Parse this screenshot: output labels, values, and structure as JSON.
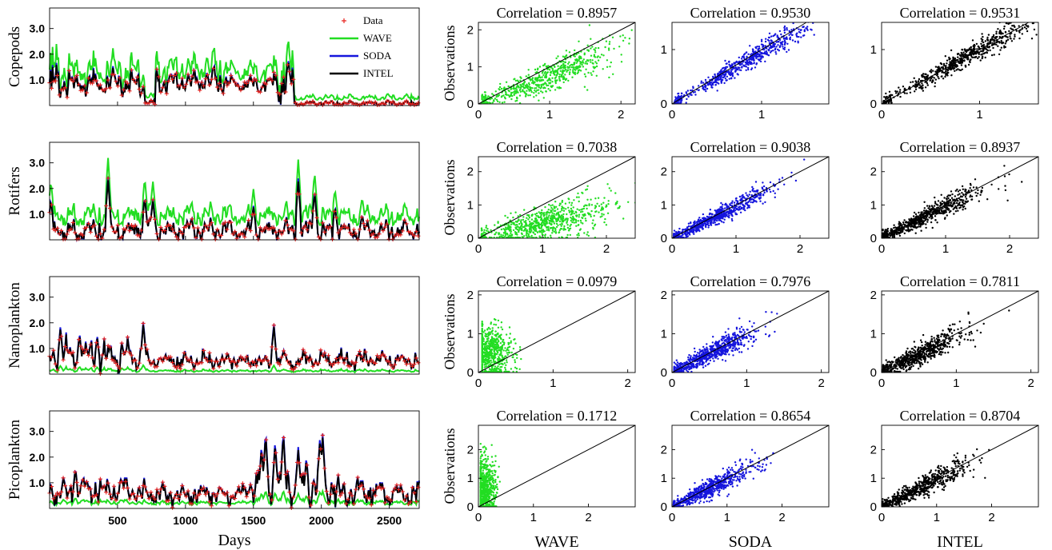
{
  "colors": {
    "data": "#e8231f",
    "wave": "#22dd22",
    "soda": "#1515dd",
    "intel": "#000000",
    "axis": "#000000",
    "background": "#ffffff"
  },
  "chart_data": [
    {
      "type": "line",
      "panel": "timeseries",
      "ylabel": "Copepods",
      "xlabel": "",
      "xlim": [
        0,
        2720
      ],
      "ylim": [
        0,
        3.8
      ],
      "xticks": [
        500,
        1000,
        1500,
        2000,
        2500
      ],
      "yticks": [
        1.0,
        2.0,
        3.0
      ],
      "yticklabels": [
        "1.0",
        "2.0",
        "3.0"
      ],
      "legend": [
        "Data",
        "WAVE",
        "SODA",
        "INTEL"
      ],
      "legend_position": "top-right",
      "segments": [
        {
          "start": 0,
          "end": 120,
          "base": 0.8,
          "amp": 0.9
        },
        {
          "start": 120,
          "end": 700,
          "base": 0.85,
          "amp": 0.5
        },
        {
          "start": 700,
          "end": 780,
          "base": 0.1,
          "amp": 0.1
        },
        {
          "start": 780,
          "end": 1300,
          "base": 0.95,
          "amp": 0.5
        },
        {
          "start": 1300,
          "end": 1650,
          "base": 0.85,
          "amp": 0.3
        },
        {
          "start": 1650,
          "end": 1800,
          "base": 0.9,
          "amp": 0.8
        },
        {
          "start": 1800,
          "end": 2720,
          "base": 0.08,
          "amp": 0.1
        }
      ],
      "wave_scale": 1.35,
      "wave_offset": 0.2,
      "spikes": []
    },
    {
      "type": "line",
      "panel": "timeseries",
      "ylabel": "Rotifers",
      "xlabel": "",
      "xlim": [
        0,
        2720
      ],
      "ylim": [
        0,
        3.8
      ],
      "xticks": [
        500,
        1000,
        1500,
        2000,
        2500
      ],
      "yticks": [
        1.0,
        2.0,
        3.0
      ],
      "yticklabels": [
        "1.0",
        "2.0",
        "3.0"
      ],
      "segments": [
        {
          "start": 0,
          "end": 2720,
          "base": 0.35,
          "amp": 0.4
        }
      ],
      "wave_scale": 1.1,
      "wave_offset": 0.55,
      "spikes": [
        [
          10,
          1.6
        ],
        [
          430,
          2.45
        ],
        [
          700,
          1.7
        ],
        [
          760,
          1.6
        ],
        [
          1500,
          1.3
        ],
        [
          1830,
          2.35
        ],
        [
          1950,
          1.9
        ],
        [
          2100,
          1.3
        ],
        [
          2300,
          1.0
        ]
      ]
    },
    {
      "type": "line",
      "panel": "timeseries",
      "ylabel": "Nanoplankton",
      "xlabel": "",
      "xlim": [
        0,
        2720
      ],
      "ylim": [
        0,
        3.8
      ],
      "xticks": [
        500,
        1000,
        1500,
        2000,
        2500
      ],
      "yticks": [
        1.0,
        2.0,
        3.0
      ],
      "yticklabels": [
        "1.0",
        "2.0",
        "3.0"
      ],
      "segments": [
        {
          "start": 0,
          "end": 700,
          "base": 0.7,
          "amp": 0.6
        },
        {
          "start": 700,
          "end": 1700,
          "base": 0.5,
          "amp": 0.3
        },
        {
          "start": 1700,
          "end": 2720,
          "base": 0.55,
          "amp": 0.35
        }
      ],
      "wave_scale": 0.15,
      "wave_offset": 0.05,
      "spikes": [
        [
          80,
          1.85
        ],
        [
          220,
          1.6
        ],
        [
          350,
          1.5
        ],
        [
          690,
          2.05
        ],
        [
          1650,
          1.95
        ]
      ]
    },
    {
      "type": "line",
      "panel": "timeseries",
      "ylabel": "Picoplankton",
      "xlabel": "Days",
      "xlim": [
        0,
        2720
      ],
      "ylim": [
        0,
        3.8
      ],
      "xticks": [
        500,
        1000,
        1500,
        2000,
        2500
      ],
      "yticks": [
        1.0,
        2.0,
        3.0
      ],
      "yticklabels": [
        "1.0",
        "2.0",
        "3.0"
      ],
      "segments": [
        {
          "start": 0,
          "end": 700,
          "base": 0.7,
          "amp": 0.5
        },
        {
          "start": 700,
          "end": 1450,
          "base": 0.55,
          "amp": 0.4
        },
        {
          "start": 1450,
          "end": 2100,
          "base": 0.9,
          "amp": 0.8
        },
        {
          "start": 2100,
          "end": 2720,
          "base": 0.6,
          "amp": 0.5
        }
      ],
      "wave_scale": 0.2,
      "wave_offset": 0.1,
      "spikes": [
        [
          190,
          1.6
        ],
        [
          1560,
          2.45
        ],
        [
          1590,
          3.0
        ],
        [
          1660,
          2.6
        ],
        [
          1720,
          3.0
        ],
        [
          1830,
          2.35
        ],
        [
          1890,
          2.0
        ],
        [
          1990,
          2.8
        ],
        [
          2010,
          2.9
        ]
      ]
    },
    {
      "type": "scatter",
      "panel": "wave-copepods",
      "title": "Correlation = 0.8957",
      "ylabel": "Observations",
      "xlabel": "",
      "xlim": [
        0,
        2.2
      ],
      "ylim": [
        0,
        2.2
      ],
      "xticks": [
        0,
        1,
        2
      ],
      "yticks": [
        0,
        1,
        2
      ],
      "n_points": 650,
      "x_center": 1.0,
      "x_spread": 0.45,
      "y_slope": 0.75,
      "y_noise": 0.25,
      "x_min": 0.05,
      "cluster_at_zero": 0.08,
      "color_key": "wave"
    },
    {
      "type": "scatter",
      "panel": "soda-copepods",
      "title": "Correlation = 0.9530",
      "ylabel": "",
      "xlabel": "",
      "xlim": [
        0,
        1.75
      ],
      "ylim": [
        0,
        1.5
      ],
      "xticks": [
        0,
        1
      ],
      "yticks": [
        0,
        1
      ],
      "n_points": 650,
      "x_center": 0.85,
      "x_spread": 0.38,
      "y_slope": 0.95,
      "y_noise": 0.12,
      "x_min": 0.03,
      "cluster_at_zero": 0.08,
      "color_key": "soda"
    },
    {
      "type": "scatter",
      "panel": "intel-copepods",
      "title": "Correlation = 0.9531",
      "ylabel": "",
      "xlabel": "",
      "xlim": [
        0,
        1.6
      ],
      "ylim": [
        0,
        1.5
      ],
      "xticks": [
        0,
        1
      ],
      "yticks": [
        0,
        1
      ],
      "n_points": 650,
      "x_center": 0.85,
      "x_spread": 0.38,
      "y_slope": 1.0,
      "y_noise": 0.12,
      "x_min": 0.02,
      "cluster_at_zero": 0.08,
      "color_key": "intel"
    },
    {
      "type": "scatter",
      "panel": "wave-rotifers",
      "title": "Correlation = 0.7038",
      "ylabel": "Observations",
      "xlabel": "",
      "xlim": [
        0,
        2.45
      ],
      "ylim": [
        0,
        2.45
      ],
      "xticks": [
        0,
        1,
        2
      ],
      "yticks": [
        0,
        1,
        2
      ],
      "n_points": 750,
      "x_center": 1.05,
      "x_spread": 0.5,
      "y_slope": 0.45,
      "y_noise": 0.3,
      "x_min": 0.05,
      "cluster_at_zero": 0.05,
      "color_key": "wave"
    },
    {
      "type": "scatter",
      "panel": "soda-rotifers",
      "title": "Correlation = 0.9038",
      "ylabel": "",
      "xlabel": "",
      "xlim": [
        0,
        2.45
      ],
      "ylim": [
        0,
        2.45
      ],
      "xticks": [
        0,
        1,
        2
      ],
      "yticks": [
        0,
        1,
        2
      ],
      "n_points": 750,
      "x_center": 0.65,
      "x_spread": 0.45,
      "y_slope": 0.95,
      "y_noise": 0.17,
      "x_min": 0.03,
      "cluster_at_zero": 0.05,
      "color_key": "soda"
    },
    {
      "type": "scatter",
      "panel": "intel-rotifers",
      "title": "Correlation = 0.8937",
      "ylabel": "",
      "xlabel": "",
      "xlim": [
        0,
        2.45
      ],
      "ylim": [
        0,
        2.45
      ],
      "xticks": [
        0,
        1,
        2
      ],
      "yticks": [
        0,
        1,
        2
      ],
      "n_points": 750,
      "x_center": 0.65,
      "x_spread": 0.45,
      "y_slope": 0.95,
      "y_noise": 0.2,
      "x_min": 0.02,
      "cluster_at_zero": 0.05,
      "color_key": "intel"
    },
    {
      "type": "scatter",
      "panel": "wave-nanoplankton",
      "title": "Correlation = 0.0979",
      "ylabel": "Observations",
      "xlabel": "",
      "xlim": [
        0,
        2.1
      ],
      "ylim": [
        0,
        2.1
      ],
      "xticks": [
        0,
        1,
        2
      ],
      "yticks": [
        0,
        1,
        2
      ],
      "n_points": 700,
      "x_center": 0.15,
      "x_spread": 0.15,
      "y_slope": 0.0,
      "y_noise": 0.35,
      "y_base": 0.5,
      "x_min": 0.05,
      "cluster_at_zero": 0.02,
      "color_key": "wave"
    },
    {
      "type": "scatter",
      "panel": "soda-nanoplankton",
      "title": "Correlation = 0.7976",
      "ylabel": "",
      "xlabel": "",
      "xlim": [
        0,
        2.1
      ],
      "ylim": [
        0,
        2.1
      ],
      "xticks": [
        0,
        1,
        2
      ],
      "yticks": [
        0,
        1,
        2
      ],
      "n_points": 700,
      "x_center": 0.5,
      "x_spread": 0.3,
      "y_slope": 0.95,
      "y_noise": 0.2,
      "x_min": 0.03,
      "cluster_at_zero": 0.03,
      "color_key": "soda"
    },
    {
      "type": "scatter",
      "panel": "intel-nanoplankton",
      "title": "Correlation = 0.7811",
      "ylabel": "",
      "xlabel": "",
      "xlim": [
        0,
        2.1
      ],
      "ylim": [
        0,
        2.1
      ],
      "xticks": [
        0,
        1,
        2
      ],
      "yticks": [
        0,
        1,
        2
      ],
      "n_points": 700,
      "x_center": 0.5,
      "x_spread": 0.3,
      "y_slope": 0.95,
      "y_noise": 0.22,
      "x_min": 0.02,
      "cluster_at_zero": 0.03,
      "color_key": "intel"
    },
    {
      "type": "scatter",
      "panel": "wave-picoplankton",
      "title": "Correlation = 0.1712",
      "ylabel": "Observations",
      "xlabel": "WAVE",
      "xlim": [
        0,
        2.85
      ],
      "ylim": [
        0,
        2.85
      ],
      "xticks": [
        0,
        1,
        2
      ],
      "yticks": [
        0,
        1,
        2
      ],
      "n_points": 700,
      "x_center": 0.12,
      "x_spread": 0.1,
      "y_slope": 0.0,
      "y_noise": 0.55,
      "y_base": 0.6,
      "x_min": 0.04,
      "cluster_at_zero": 0.02,
      "color_key": "wave"
    },
    {
      "type": "scatter",
      "panel": "soda-picoplankton",
      "title": "Correlation = 0.8654",
      "ylabel": "",
      "xlabel": "SODA",
      "xlim": [
        0,
        2.85
      ],
      "ylim": [
        0,
        2.85
      ],
      "xticks": [
        0,
        1,
        2
      ],
      "yticks": [
        0,
        1,
        2
      ],
      "n_points": 700,
      "x_center": 0.65,
      "x_spread": 0.45,
      "y_slope": 0.95,
      "y_noise": 0.22,
      "x_min": 0.03,
      "cluster_at_zero": 0.03,
      "color_key": "soda"
    },
    {
      "type": "scatter",
      "panel": "intel-picoplankton",
      "title": "Correlation = 0.8704",
      "ylabel": "",
      "xlabel": "INTEL",
      "xlim": [
        0,
        2.85
      ],
      "ylim": [
        0,
        2.85
      ],
      "xticks": [
        0,
        1,
        2
      ],
      "yticks": [
        0,
        1,
        2
      ],
      "n_points": 700,
      "x_center": 0.65,
      "x_spread": 0.45,
      "y_slope": 0.95,
      "y_noise": 0.23,
      "x_min": 0.02,
      "cluster_at_zero": 0.03,
      "color_key": "intel"
    }
  ]
}
